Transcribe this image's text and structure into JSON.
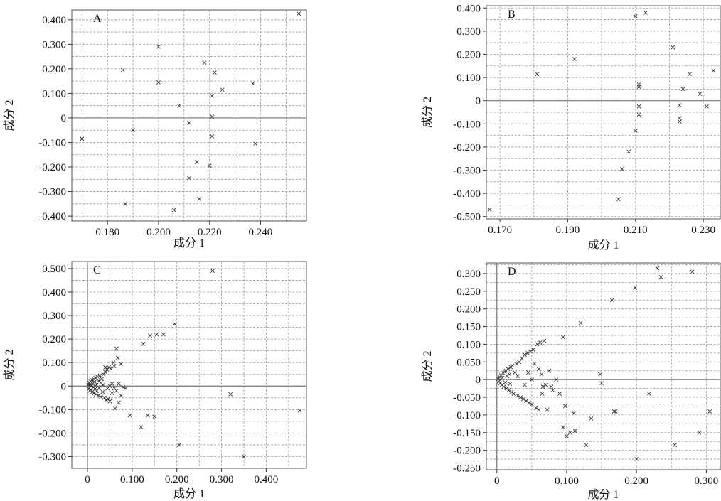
{
  "chart_data": [
    {
      "type": "scatter",
      "panel": "A",
      "xlabel": "成分 1",
      "ylabel": "成分 2",
      "xlim": [
        0.166,
        0.258
      ],
      "ylim": [
        -0.42,
        0.44
      ],
      "xticks": [
        0.18,
        0.2,
        0.22,
        0.24
      ],
      "xtick_labels": [
        "0.180",
        "0.200",
        "0.220",
        "0.240"
      ],
      "yticks": [
        0.4,
        0.3,
        0.2,
        0.1,
        0,
        -0.1,
        -0.2,
        -0.3,
        -0.4
      ],
      "ytick_labels": [
        "0.400",
        "0.300",
        "0.200",
        "0.100",
        "0",
        "-0.100",
        "-0.200",
        "-0.300",
        "-0.400"
      ],
      "points": [
        [
          0.17,
          -0.085
        ],
        [
          0.186,
          0.195
        ],
        [
          0.187,
          -0.35
        ],
        [
          0.19,
          -0.05
        ],
        [
          0.2,
          0.29
        ],
        [
          0.2,
          0.145
        ],
        [
          0.206,
          -0.375
        ],
        [
          0.208,
          0.05
        ],
        [
          0.212,
          -0.02
        ],
        [
          0.212,
          -0.245
        ],
        [
          0.215,
          -0.18
        ],
        [
          0.216,
          -0.33
        ],
        [
          0.218,
          0.225
        ],
        [
          0.22,
          -0.195
        ],
        [
          0.221,
          0.005
        ],
        [
          0.221,
          -0.075
        ],
        [
          0.222,
          0.185
        ],
        [
          0.221,
          0.09
        ],
        [
          0.225,
          0.115
        ],
        [
          0.237,
          0.14
        ],
        [
          0.238,
          -0.105
        ],
        [
          0.255,
          0.425
        ]
      ]
    },
    {
      "type": "scatter",
      "panel": "B",
      "xlabel": "成分 1",
      "ylabel": "成分 2",
      "xlim": [
        0.166,
        0.235
      ],
      "ylim": [
        -0.51,
        0.41
      ],
      "xticks": [
        0.17,
        0.19,
        0.21,
        0.23
      ],
      "xtick_labels": [
        "0.170",
        "0.190",
        "0.210",
        "0.230"
      ],
      "yticks": [
        0.4,
        0.3,
        0.2,
        0.1,
        0,
        -0.1,
        -0.2,
        -0.3,
        -0.4,
        -0.5
      ],
      "ytick_labels": [
        "0.400",
        "0.300",
        "0.200",
        "0.100",
        "0",
        "-0.100",
        "-0.200",
        "-0.300",
        "-0.400",
        "-0.500"
      ],
      "points": [
        [
          0.167,
          -0.47
        ],
        [
          0.181,
          0.115
        ],
        [
          0.192,
          0.18
        ],
        [
          0.205,
          -0.425
        ],
        [
          0.206,
          -0.295
        ],
        [
          0.208,
          -0.22
        ],
        [
          0.21,
          -0.13
        ],
        [
          0.21,
          0.365
        ],
        [
          0.211,
          0.07
        ],
        [
          0.211,
          0.06
        ],
        [
          0.211,
          -0.025
        ],
        [
          0.211,
          -0.06
        ],
        [
          0.213,
          0.38
        ],
        [
          0.221,
          0.23
        ],
        [
          0.223,
          -0.02
        ],
        [
          0.223,
          -0.075
        ],
        [
          0.223,
          -0.09
        ],
        [
          0.224,
          0.05
        ],
        [
          0.226,
          0.115
        ],
        [
          0.229,
          0.03
        ],
        [
          0.231,
          -0.025
        ],
        [
          0.233,
          0.13
        ]
      ]
    },
    {
      "type": "scatter",
      "panel": "C",
      "xlabel": "成分 1",
      "ylabel": "成分 2",
      "xlim": [
        -0.035,
        0.49
      ],
      "ylim": [
        -0.35,
        0.53
      ],
      "xticks": [
        0,
        0.1,
        0.2,
        0.3,
        0.4
      ],
      "xtick_labels": [
        "0",
        "0.100",
        "0.200",
        "0.300",
        "0.400"
      ],
      "yticks": [
        0.5,
        0.4,
        0.3,
        0.2,
        0.1,
        0,
        -0.1,
        -0.2,
        -0.3
      ],
      "ytick_labels": [
        "0.500",
        "0.400",
        "0.300",
        "0.200",
        "0.100",
        "0",
        "-0.100",
        "-0.200",
        "-0.300"
      ],
      "points": [
        [
          0.002,
          0.005
        ],
        [
          0.003,
          -0.01
        ],
        [
          0.004,
          0.015
        ],
        [
          0.005,
          -0.02
        ],
        [
          0.006,
          0.008
        ],
        [
          0.007,
          0.02
        ],
        [
          0.008,
          -0.015
        ],
        [
          0.009,
          0.0
        ],
        [
          0.01,
          0.025
        ],
        [
          0.011,
          -0.025
        ],
        [
          0.012,
          0.01
        ],
        [
          0.013,
          -0.005
        ],
        [
          0.014,
          0.03
        ],
        [
          0.015,
          -0.03
        ],
        [
          0.016,
          0.018
        ],
        [
          0.017,
          -0.012
        ],
        [
          0.018,
          0.035
        ],
        [
          0.019,
          -0.035
        ],
        [
          0.02,
          0.005
        ],
        [
          0.021,
          -0.02
        ],
        [
          0.022,
          0.04
        ],
        [
          0.024,
          -0.04
        ],
        [
          0.025,
          0.022
        ],
        [
          0.026,
          -0.008
        ],
        [
          0.028,
          0.045
        ],
        [
          0.03,
          -0.045
        ],
        [
          0.032,
          0.03
        ],
        [
          0.034,
          -0.025
        ],
        [
          0.036,
          0.05
        ],
        [
          0.038,
          -0.05
        ],
        [
          0.04,
          0.06
        ],
        [
          0.042,
          -0.06
        ],
        [
          0.044,
          0.07
        ],
        [
          0.046,
          -0.055
        ],
        [
          0.048,
          0.08
        ],
        [
          0.05,
          -0.065
        ],
        [
          0.052,
          0.075
        ],
        [
          0.055,
          -0.03
        ],
        [
          0.058,
          0.1
        ],
        [
          0.06,
          0.085
        ],
        [
          0.06,
          -0.01
        ],
        [
          0.062,
          -0.095
        ],
        [
          0.065,
          0.16
        ],
        [
          0.068,
          0.12
        ],
        [
          0.07,
          -0.07
        ],
        [
          0.075,
          0.095
        ],
        [
          0.08,
          -0.005
        ],
        [
          0.085,
          -0.01
        ],
        [
          0.04,
          0.08
        ],
        [
          0.045,
          -0.01
        ],
        [
          0.035,
          0.005
        ],
        [
          0.03,
          0.015
        ],
        [
          0.05,
          0.0
        ],
        [
          0.055,
          0.01
        ],
        [
          0.065,
          -0.02
        ],
        [
          0.07,
          0.01
        ],
        [
          0.075,
          -0.04
        ],
        [
          0.095,
          -0.125
        ],
        [
          0.12,
          -0.175
        ],
        [
          0.125,
          0.18
        ],
        [
          0.135,
          -0.125
        ],
        [
          0.14,
          0.215
        ],
        [
          0.15,
          -0.13
        ],
        [
          0.155,
          0.22
        ],
        [
          0.17,
          0.22
        ],
        [
          0.195,
          0.265
        ],
        [
          0.205,
          -0.25
        ],
        [
          0.28,
          0.49
        ],
        [
          0.32,
          -0.035
        ],
        [
          0.35,
          -0.3
        ],
        [
          0.475,
          -0.105
        ]
      ]
    },
    {
      "type": "scatter",
      "panel": "D",
      "xlabel": "成分 1",
      "ylabel": "成分 2",
      "xlim": [
        -0.015,
        0.32
      ],
      "ylim": [
        -0.255,
        0.33
      ],
      "xticks": [
        0,
        0.1,
        0.2,
        0.3
      ],
      "xtick_labels": [
        "0",
        "0.100",
        "0.200",
        "0.300"
      ],
      "yticks": [
        0.3,
        0.25,
        0.2,
        0.15,
        0.1,
        0.05,
        0,
        -0.05,
        -0.1,
        -0.15,
        -0.2,
        -0.25
      ],
      "ytick_labels": [
        "0.300",
        "0.250",
        "0.200",
        "0.150",
        "0.100",
        "0.050",
        "0",
        "-0.050",
        "-0.100",
        "-0.150",
        "-0.200",
        "-0.250"
      ],
      "points": [
        [
          0.002,
          0.002
        ],
        [
          0.003,
          -0.005
        ],
        [
          0.004,
          0.008
        ],
        [
          0.005,
          -0.01
        ],
        [
          0.006,
          0.012
        ],
        [
          0.007,
          -0.015
        ],
        [
          0.008,
          0.005
        ],
        [
          0.009,
          0.018
        ],
        [
          0.01,
          -0.02
        ],
        [
          0.011,
          0.022
        ],
        [
          0.012,
          -0.008
        ],
        [
          0.013,
          0.025
        ],
        [
          0.014,
          -0.025
        ],
        [
          0.015,
          0.01
        ],
        [
          0.016,
          0.03
        ],
        [
          0.017,
          -0.03
        ],
        [
          0.018,
          0.015
        ],
        [
          0.019,
          -0.012
        ],
        [
          0.02,
          0.035
        ],
        [
          0.021,
          -0.035
        ],
        [
          0.022,
          0.04
        ],
        [
          0.024,
          -0.04
        ],
        [
          0.026,
          0.02
        ],
        [
          0.028,
          0.045
        ],
        [
          0.03,
          -0.045
        ],
        [
          0.032,
          0.05
        ],
        [
          0.034,
          -0.05
        ],
        [
          0.036,
          0.06
        ],
        [
          0.038,
          -0.055
        ],
        [
          0.04,
          0.07
        ],
        [
          0.042,
          -0.06
        ],
        [
          0.044,
          0.075
        ],
        [
          0.046,
          -0.065
        ],
        [
          0.048,
          0.08
        ],
        [
          0.05,
          -0.07
        ],
        [
          0.052,
          0.085
        ],
        [
          0.054,
          0.045
        ],
        [
          0.056,
          -0.08
        ],
        [
          0.058,
          0.1
        ],
        [
          0.06,
          -0.085
        ],
        [
          0.062,
          0.105
        ],
        [
          0.064,
          0.015
        ],
        [
          0.066,
          -0.02
        ],
        [
          0.068,
          0.11
        ],
        [
          0.07,
          -0.015
        ],
        [
          0.072,
          -0.085
        ],
        [
          0.075,
          0.025
        ],
        [
          0.078,
          -0.02
        ],
        [
          0.08,
          -0.03
        ],
        [
          0.085,
          0.0
        ],
        [
          0.09,
          -0.04
        ],
        [
          0.095,
          0.12
        ],
        [
          0.095,
          -0.135
        ],
        [
          0.098,
          -0.075
        ],
        [
          0.1,
          -0.16
        ],
        [
          0.105,
          -0.15
        ],
        [
          0.11,
          -0.095
        ],
        [
          0.112,
          -0.145
        ],
        [
          0.12,
          0.16
        ],
        [
          0.128,
          -0.185
        ],
        [
          0.135,
          -0.11
        ],
        [
          0.148,
          0.015
        ],
        [
          0.15,
          -0.01
        ],
        [
          0.165,
          0.225
        ],
        [
          0.168,
          -0.09
        ],
        [
          0.17,
          -0.09
        ],
        [
          0.198,
          0.26
        ],
        [
          0.2,
          -0.225
        ],
        [
          0.218,
          -0.04
        ],
        [
          0.23,
          0.315
        ],
        [
          0.235,
          0.29
        ],
        [
          0.255,
          -0.185
        ],
        [
          0.28,
          0.305
        ],
        [
          0.29,
          -0.15
        ],
        [
          0.305,
          -0.09
        ],
        [
          0.03,
          0.01
        ],
        [
          0.04,
          -0.015
        ],
        [
          0.045,
          0.02
        ],
        [
          0.05,
          0.0
        ],
        [
          0.06,
          0.03
        ],
        [
          0.065,
          -0.04
        ]
      ]
    }
  ]
}
